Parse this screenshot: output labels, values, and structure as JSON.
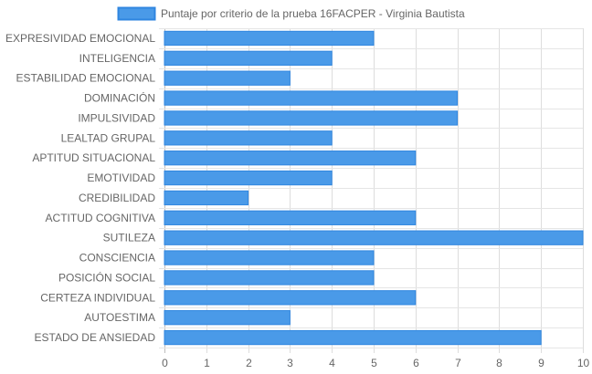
{
  "chart_data": {
    "type": "bar",
    "orientation": "horizontal",
    "categories": [
      "EXPRESIVIDAD EMOCIONAL",
      "INTELIGENCIA",
      "ESTABILIDAD EMOCIONAL",
      "DOMINACIÓN",
      "IMPULSIVIDAD",
      "LEALTAD GRUPAL",
      "APTITUD SITUACIONAL",
      "EMOTIVIDAD",
      "CREDIBILIDAD",
      "ACTITUD COGNITIVA",
      "SUTILEZA",
      "CONSCIENCIA",
      "POSICIÓN SOCIAL",
      "CERTEZA INDIVIDUAL",
      "AUTOESTIMA",
      "ESTADO DE ANSIEDAD"
    ],
    "series": [
      {
        "name": "Puntaje por criterio de la prueba 16FACPER - Virginia Bautista",
        "values": [
          5,
          4,
          3,
          7,
          7,
          4,
          6,
          4,
          2,
          6,
          10,
          5,
          5,
          6,
          3,
          9
        ],
        "color": "#4a9ae8",
        "border_color": "#2f86e0"
      }
    ],
    "xlim": [
      0,
      10
    ],
    "x_ticks": [
      "0",
      "1",
      "2",
      "3",
      "4",
      "5",
      "6",
      "7",
      "8",
      "9",
      "10"
    ],
    "grid": true,
    "legend_position": "top"
  }
}
